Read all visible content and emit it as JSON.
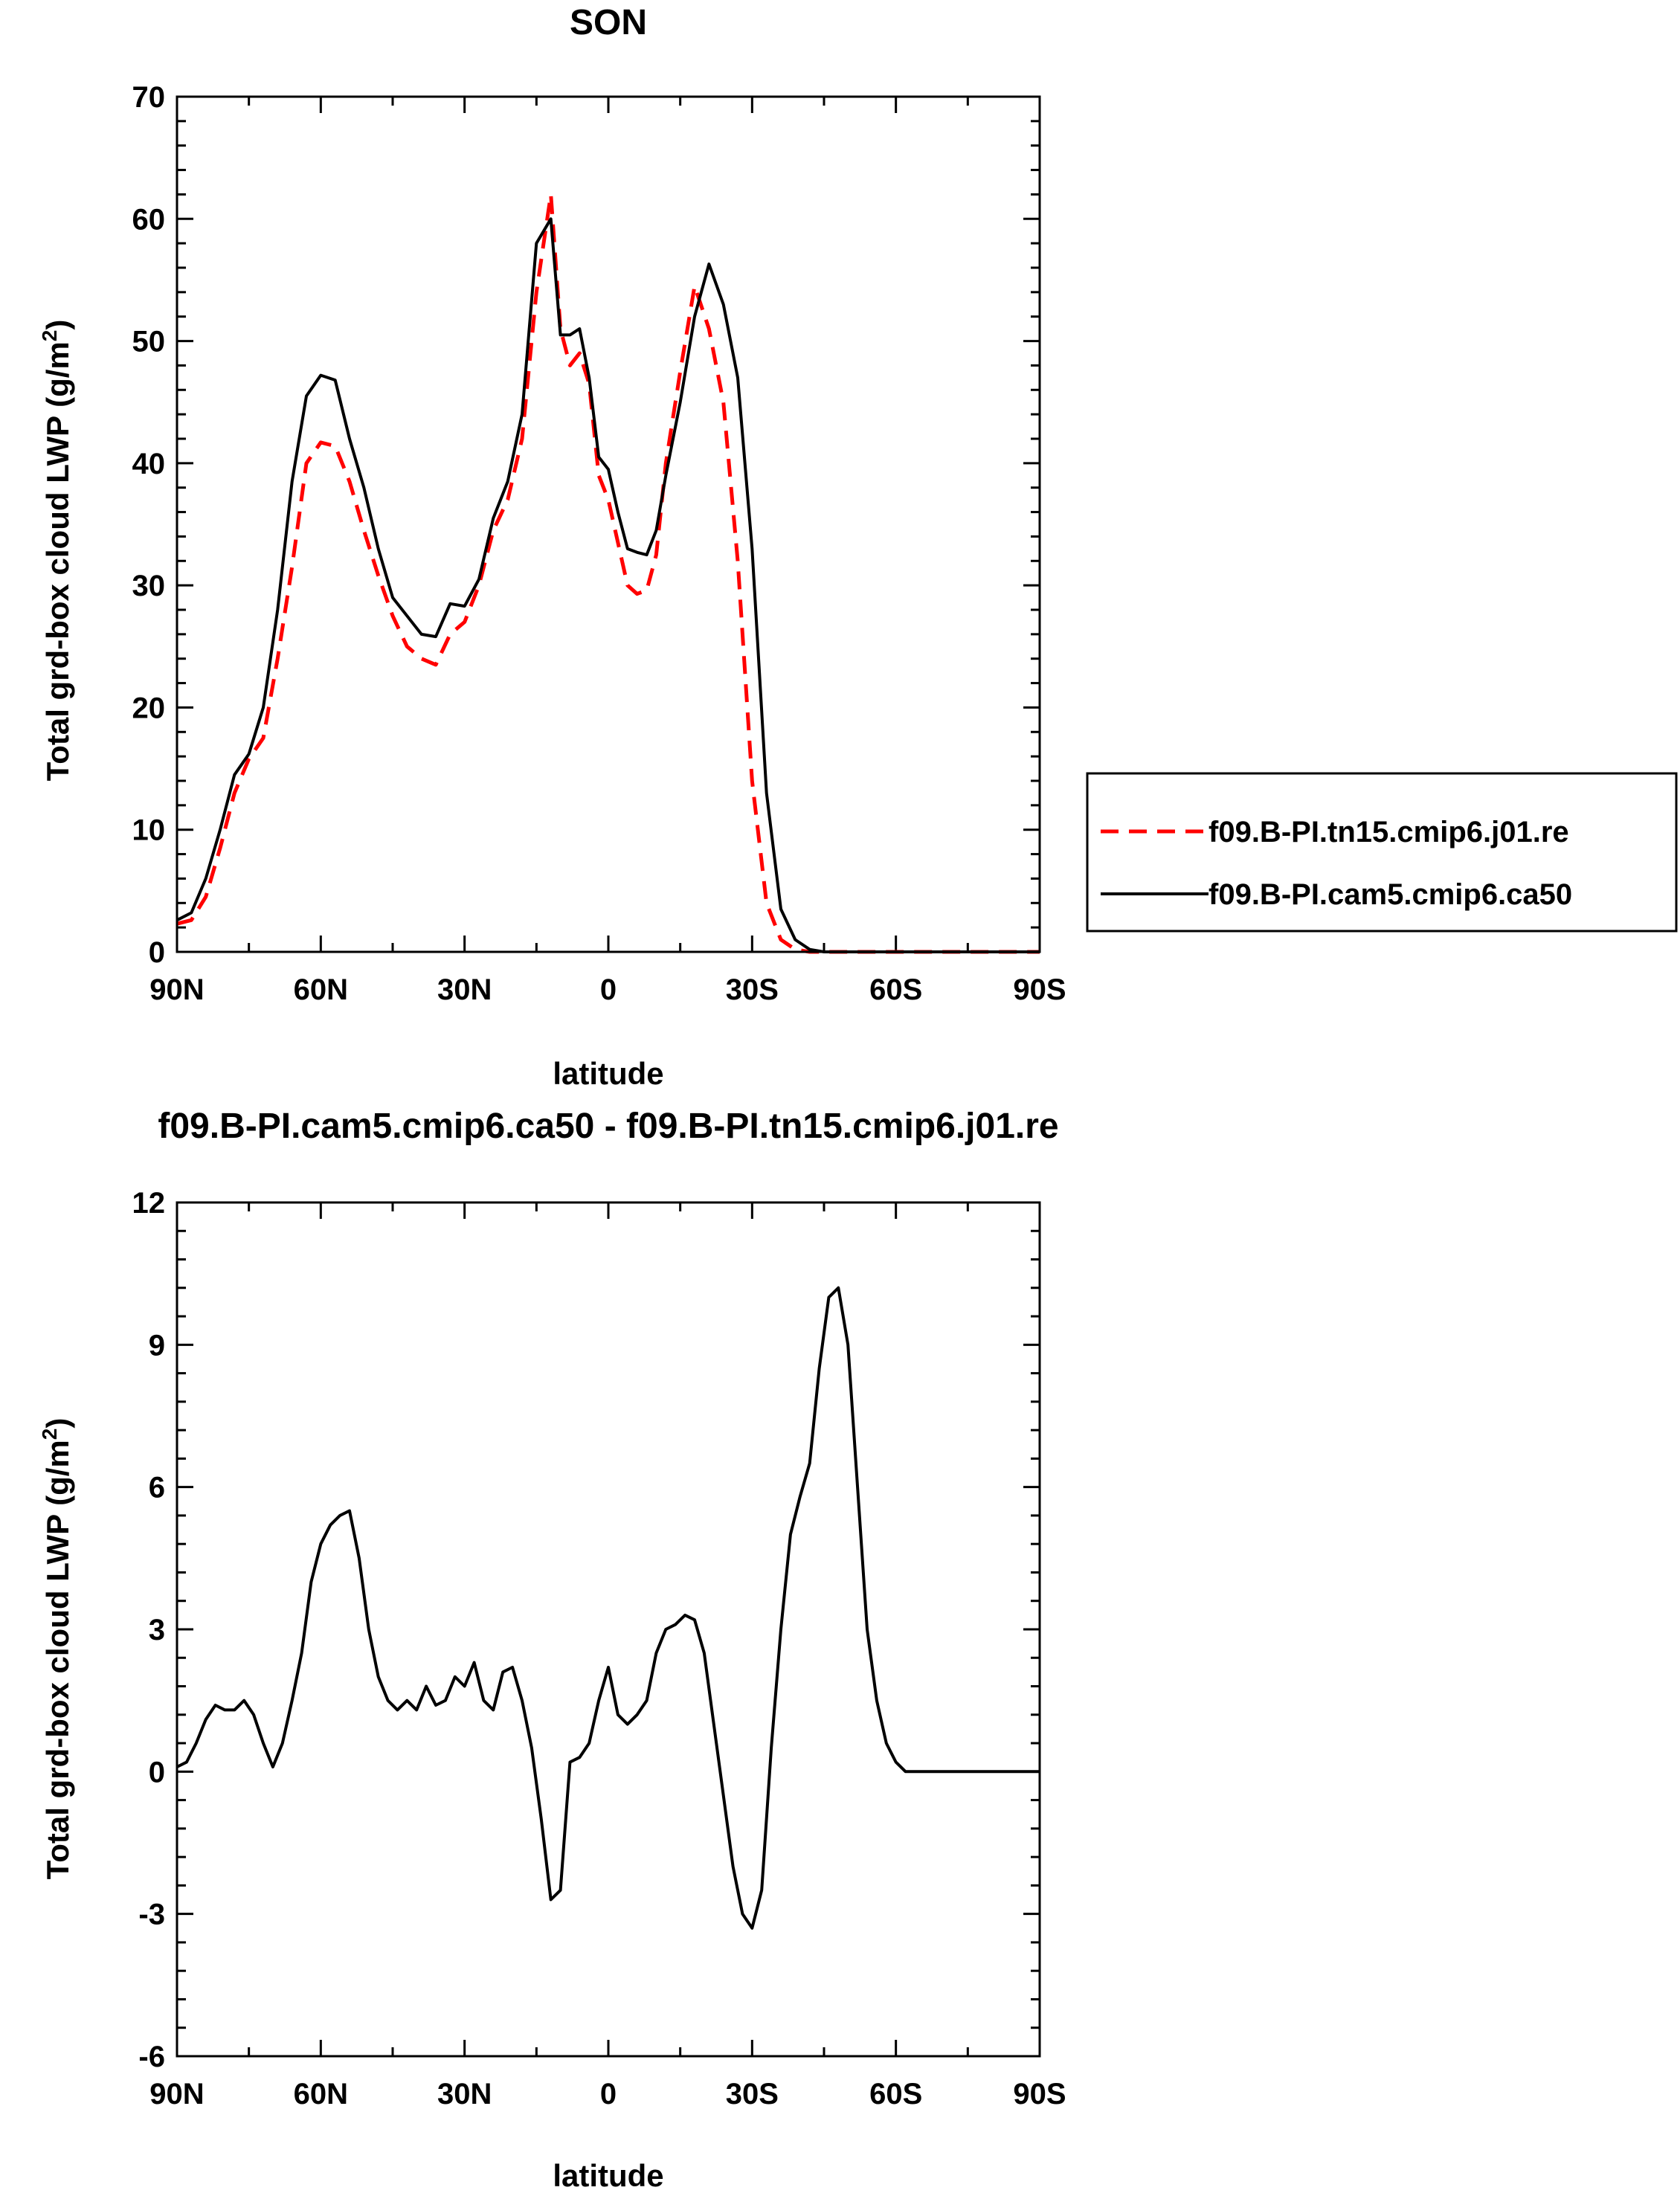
{
  "chart_data": [
    {
      "type": "line",
      "title": "SON",
      "xlabel": "latitude",
      "ylabel": "Total grd-box cloud LWP (g/m²)",
      "ylabel_main": "Total grd-box cloud LWP (g/m",
      "ylabel_sup": "2",
      "ylabel_end": ")",
      "xlim": [
        90,
        -90
      ],
      "ylim": [
        0,
        70
      ],
      "x_ticks": [
        90,
        60,
        30,
        0,
        -30,
        -60,
        -90
      ],
      "x_tick_labels": [
        "90N",
        "60N",
        "30N",
        "0",
        "30S",
        "60S",
        "90S"
      ],
      "y_ticks": [
        0,
        10,
        20,
        30,
        40,
        50,
        60,
        70
      ],
      "y_tick_labels": [
        "0",
        "10",
        "20",
        "30",
        "40",
        "50",
        "60",
        "70"
      ],
      "legend": "right",
      "series": [
        {
          "name": "f09.B-PI.tn15.cmip6.j01.re",
          "color": "#ff0000",
          "dash": "dashed",
          "x": [
            90,
            87,
            84,
            81,
            78,
            75,
            72,
            69,
            66,
            63,
            60,
            57,
            54,
            51,
            48,
            45,
            42,
            39,
            36,
            33,
            30,
            27,
            24,
            21,
            18,
            15,
            12,
            10,
            8,
            6,
            4,
            2,
            0,
            -2,
            -4,
            -6,
            -8,
            -10,
            -12,
            -15,
            -18,
            -21,
            -24,
            -27,
            -30,
            -33,
            -36,
            -39,
            -42,
            -45,
            -48,
            -51,
            -54,
            -57,
            -60,
            -63,
            -66,
            -69,
            -72,
            -75,
            -78,
            -81,
            -84,
            -87,
            -90
          ],
          "values": [
            2.3,
            2.6,
            4.5,
            8.5,
            13.0,
            15.8,
            17.5,
            24.0,
            31.5,
            40.0,
            41.7,
            41.4,
            38.5,
            34.5,
            30.8,
            27.5,
            25.0,
            24.0,
            23.5,
            26.0,
            27.0,
            30.0,
            34.5,
            37.0,
            42.0,
            54.0,
            62.0,
            51.0,
            48.0,
            49.0,
            46.5,
            39.0,
            37.0,
            33.5,
            30.0,
            29.3,
            29.6,
            32.5,
            40.0,
            47.5,
            54.5,
            51.0,
            45.0,
            32.0,
            14.0,
            4.0,
            1.0,
            0.2,
            0.0,
            0.0,
            0.0,
            0.0,
            0.0,
            0.0,
            0.0,
            0.0,
            0.0,
            0.0,
            0.0,
            0.0,
            0.0,
            0.0,
            0.0,
            0.0,
            0.0
          ]
        },
        {
          "name": "f09.B-PI.cam5.cmip6.ca50",
          "color": "#000000",
          "dash": "solid",
          "x": [
            90,
            87,
            84,
            81,
            78,
            75,
            72,
            69,
            66,
            63,
            60,
            57,
            54,
            51,
            48,
            45,
            42,
            39,
            36,
            33,
            30,
            27,
            24,
            21,
            18,
            15,
            12,
            10,
            8,
            6,
            4,
            2,
            0,
            -2,
            -4,
            -6,
            -8,
            -10,
            -12,
            -15,
            -18,
            -21,
            -24,
            -27,
            -30,
            -33,
            -36,
            -39,
            -42,
            -45,
            -48,
            -51,
            -54,
            -57,
            -60,
            -63,
            -66,
            -69,
            -72,
            -75,
            -78,
            -81,
            -84,
            -87,
            -90
          ],
          "values": [
            2.6,
            3.2,
            6.0,
            10.0,
            14.5,
            16.2,
            20.0,
            28.0,
            38.5,
            45.5,
            47.2,
            46.8,
            42.0,
            38.0,
            33.0,
            29.0,
            27.5,
            26.0,
            25.8,
            28.5,
            28.3,
            30.5,
            35.5,
            38.5,
            44.0,
            58.0,
            60.0,
            50.5,
            50.5,
            51.0,
            47.0,
            40.5,
            39.5,
            36.0,
            33.0,
            32.7,
            32.5,
            34.5,
            39.0,
            45.0,
            52.0,
            56.3,
            53.0,
            47.0,
            33.0,
            13.0,
            3.5,
            1.0,
            0.2,
            0.0,
            0.0,
            0.0,
            0.0,
            0.0,
            0.0,
            0.0,
            0.0,
            0.0,
            0.0,
            0.0,
            0.0,
            0.0,
            0.0,
            0.0,
            0.0
          ]
        }
      ]
    },
    {
      "type": "line",
      "title": "f09.B-PI.cam5.cmip6.ca50 - f09.B-PI.tn15.cmip6.j01.re",
      "xlabel": "latitude",
      "ylabel": "Total grd-box cloud LWP (g/m²)",
      "ylabel_main": "Total grd-box cloud LWP (g/m",
      "ylabel_sup": "2",
      "ylabel_end": ")",
      "xlim": [
        90,
        -90
      ],
      "ylim": [
        -6,
        12
      ],
      "x_ticks": [
        90,
        60,
        30,
        0,
        -30,
        -60,
        -90
      ],
      "x_tick_labels": [
        "90N",
        "60N",
        "30N",
        "0",
        "30S",
        "60S",
        "90S"
      ],
      "y_ticks": [
        -6,
        -3,
        0,
        3,
        6,
        9,
        12
      ],
      "y_tick_labels": [
        "-6",
        "-3",
        "0",
        "3",
        "6",
        "9",
        "12"
      ],
      "series": [
        {
          "color": "#000000",
          "dash": "solid",
          "x": [
            90,
            88,
            86,
            84,
            82,
            80,
            78,
            76,
            74,
            72,
            70,
            68,
            66,
            64,
            62,
            60,
            58,
            56,
            54,
            52,
            50,
            48,
            46,
            44,
            42,
            40,
            38,
            36,
            34,
            32,
            30,
            28,
            26,
            24,
            22,
            20,
            18,
            16,
            14,
            12,
            10,
            8,
            6,
            4,
            2,
            0,
            -2,
            -4,
            -6,
            -8,
            -10,
            -12,
            -14,
            -16,
            -18,
            -20,
            -22,
            -24,
            -26,
            -28,
            -30,
            -32,
            -34,
            -36,
            -38,
            -40,
            -42,
            -44,
            -46,
            -48,
            -50,
            -52,
            -54,
            -56,
            -58,
            -60,
            -62,
            -64,
            -66,
            -68,
            -70,
            -72,
            -74,
            -76,
            -78,
            -80,
            -84,
            -88,
            -90
          ],
          "values": [
            0.1,
            0.2,
            0.6,
            1.1,
            1.4,
            1.3,
            1.3,
            1.5,
            1.2,
            0.6,
            0.1,
            0.6,
            1.5,
            2.5,
            4.0,
            4.8,
            5.2,
            5.4,
            5.5,
            4.5,
            3.0,
            2.0,
            1.5,
            1.3,
            1.5,
            1.3,
            1.8,
            1.4,
            1.5,
            2.0,
            1.8,
            2.3,
            1.5,
            1.3,
            2.1,
            2.2,
            1.5,
            0.5,
            -1.0,
            -2.7,
            -2.5,
            0.2,
            0.3,
            0.6,
            1.5,
            2.2,
            1.2,
            1.0,
            1.2,
            1.5,
            2.5,
            3.0,
            3.1,
            3.3,
            3.2,
            2.5,
            1.0,
            -0.5,
            -2.0,
            -3.0,
            -3.3,
            -2.5,
            0.5,
            3.0,
            5.0,
            5.8,
            6.5,
            8.5,
            10.0,
            10.2,
            9.0,
            6.0,
            3.0,
            1.5,
            0.6,
            0.2,
            0.0,
            0.0,
            0.0,
            0.0,
            0.0,
            0.0,
            0.0,
            0.0,
            0.0,
            0.0,
            0.0,
            0.0,
            0.0
          ]
        }
      ]
    }
  ]
}
